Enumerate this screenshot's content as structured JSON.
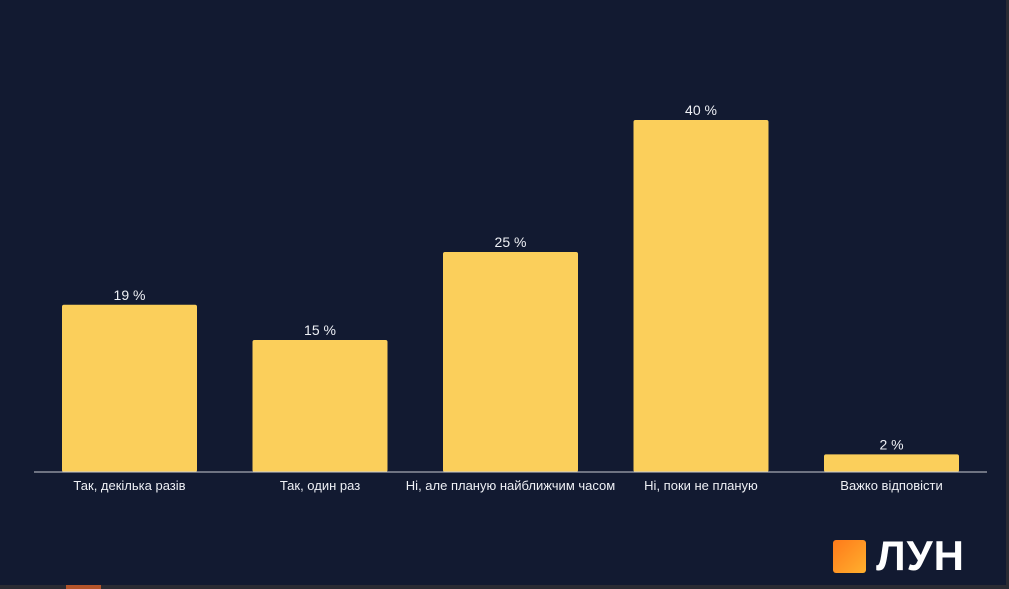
{
  "chart_data": {
    "type": "bar",
    "categories": [
      "Так, декілька разів",
      "Так, один раз",
      "Ні, але планую найближчим часом",
      "Ні, поки не планую",
      "Важко відповісти"
    ],
    "values": [
      19,
      15,
      25,
      40,
      2
    ],
    "value_labels": [
      "19 %",
      "15 %",
      "25 %",
      "40 %",
      "2 %"
    ],
    "ylim": [
      0,
      40
    ],
    "grid": false,
    "colors": {
      "background": "#121a31",
      "bar": "#fbcf5b",
      "text": "#eef0f5"
    }
  },
  "brand": {
    "logo_text": "ЛУН",
    "icon": "orange-square-icon"
  }
}
